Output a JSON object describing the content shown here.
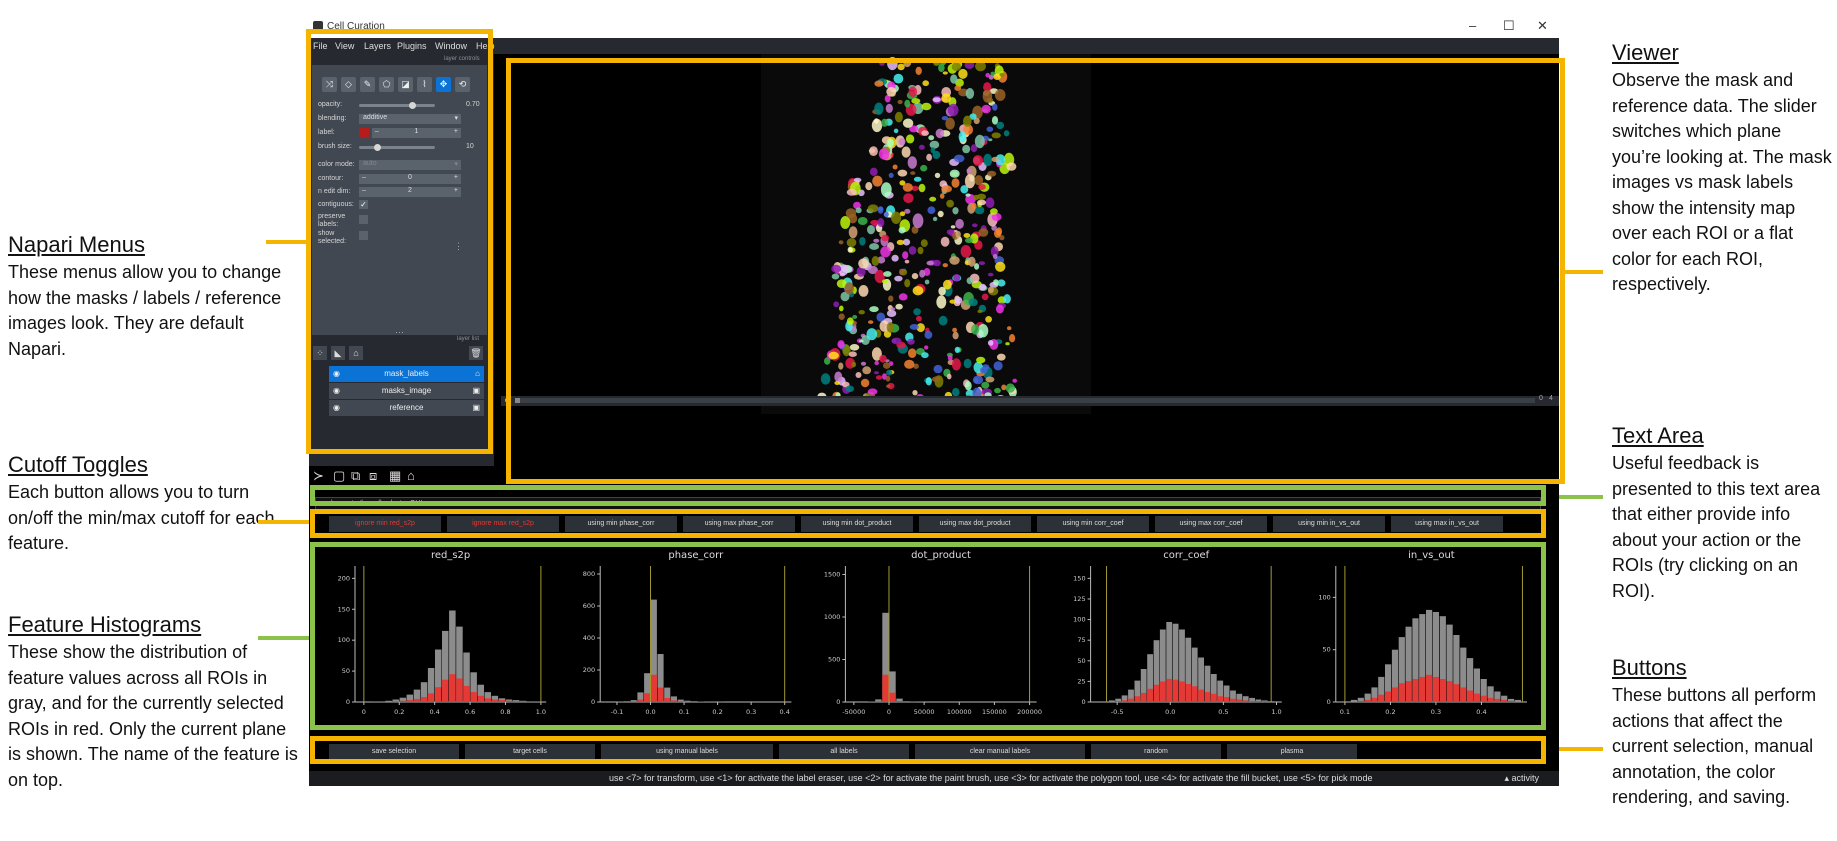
{
  "annotations": {
    "napari_menus": {
      "title": "Napari Menus",
      "description": "These menus allow you to change how the masks / labels / reference images look. They are default Napari."
    },
    "cutoff_toggles": {
      "title": "Cutoff Toggles",
      "description": "Each button allows you to turn on/off the min/max cutoff for each feature."
    },
    "feature_histograms": {
      "title": "Feature Histograms",
      "description": "These show the distribution of feature values across all ROIs in gray, and for the currently selected ROIs in red. Only the current plane is shown. The name of the feature is on top."
    },
    "viewer": {
      "title": "Viewer",
      "description": "Observe the mask and reference data. The slider switches which plane you’re looking at. The mask images vs mask labels show the intensity map over each ROI or a flat color for each ROI, respectively."
    },
    "text_area": {
      "title": "Text Area",
      "description": "Useful feedback is presented to this text area that either provide info about your action or the ROIs (try clicking on an ROI)."
    },
    "buttons": {
      "title": "Buttons",
      "description": "These buttons all perform actions that affect the current selection, manual annotation, the color rendering, and saving."
    }
  },
  "window": {
    "title": "Cell Curation",
    "controls": [
      "–",
      "☐",
      "✕"
    ]
  },
  "menubar": [
    "File",
    "View",
    "Layers",
    "Plugins",
    "Window",
    "Help"
  ],
  "layer_controls": {
    "header": "layer controls",
    "opacity_label": "opacity:",
    "opacity_value": "0.70",
    "opacity_fraction": 0.7,
    "blending_label": "blending:",
    "blending_value": "additive",
    "label_label": "label:",
    "label_value": "1",
    "label_color": "#b71c1c",
    "brush_size_label": "brush size:",
    "brush_size_value": "10",
    "color_mode_label": "color mode:",
    "color_mode_value": "auto",
    "contour_label": "contour:",
    "contour_value": "0",
    "n_edit_dim_label": "n edit dim:",
    "n_edit_dim_value": "2",
    "contiguous_label": "contiguous:",
    "contiguous_checked": true,
    "preserve_labels_label": "preserve labels:",
    "show_selected_label": "show selected:",
    "tool_icons": [
      "shuffle-icon",
      "eraser-icon",
      "brush-icon",
      "polygon-icon",
      "fill-icon",
      "picker-icon",
      "move-icon",
      "transform-icon"
    ]
  },
  "layer_list": {
    "header": "layer list",
    "layers": [
      {
        "name": "mask_labels",
        "kind": "labels",
        "active": true
      },
      {
        "name": "masks_image",
        "kind": "image",
        "active": false
      },
      {
        "name": "reference",
        "kind": "image",
        "active": false
      }
    ]
  },
  "dims": {
    "left": "0",
    "right": "0",
    "total": "4"
  },
  "text_area": {
    "message": "welcome to the cell selector GUI"
  },
  "toggles": [
    {
      "label": "ignore min red_s2p",
      "state": "ignore"
    },
    {
      "label": "ignore max red_s2p",
      "state": "ignore"
    },
    {
      "label": "using min phase_corr",
      "state": "using"
    },
    {
      "label": "using max phase_corr",
      "state": "using"
    },
    {
      "label": "using min dot_product",
      "state": "using"
    },
    {
      "label": "using max dot_product",
      "state": "using"
    },
    {
      "label": "using min corr_coef",
      "state": "using"
    },
    {
      "label": "using max corr_coef",
      "state": "using"
    },
    {
      "label": "using min in_vs_out",
      "state": "using"
    },
    {
      "label": "using max in_vs_out",
      "state": "using"
    }
  ],
  "buttons": [
    "save selection",
    "target cells",
    "using manual labels",
    "all labels",
    "clear manual labels",
    "random",
    "plasma"
  ],
  "status_bar": {
    "message": "use <7> for transform, use <1> for activate the label eraser, use <2> for activate the paint brush, use <3> for activate the polygon tool, use <4> for activate the fill bucket, use <5> for pick mode",
    "activity": "activity"
  },
  "colors": {
    "highlight_yellow": "#f4b400",
    "highlight_green": "#8bc34a",
    "all_rois_gray": "#8c8c8c",
    "selected_rois_red": "#e53935",
    "cutoff_line": "#a49a33",
    "napari_bg": "#262930",
    "napari_active": "#0b73d6"
  },
  "chart_data": [
    {
      "type": "bar",
      "title": "red_s2p",
      "xlim": [
        -0.05,
        1.03
      ],
      "ylim": [
        0,
        220
      ],
      "xticks": [
        0,
        0.2,
        0.4,
        0.6,
        0.8,
        1.0
      ],
      "xticklabels": [
        "0",
        "0.2",
        "0.4",
        "0.6",
        "0.8",
        "1.0"
      ],
      "yticks": [
        0,
        50,
        100,
        150,
        200
      ],
      "cutoffs": [
        0.0,
        1.0
      ],
      "x": [
        0.02,
        0.06,
        0.1,
        0.14,
        0.18,
        0.22,
        0.26,
        0.3,
        0.34,
        0.38,
        0.42,
        0.46,
        0.5,
        0.54,
        0.58,
        0.62,
        0.66,
        0.7,
        0.74,
        0.78,
        0.82,
        0.86,
        0.9,
        0.94,
        0.98
      ],
      "series": [
        {
          "name": "all",
          "values": [
            0,
            1,
            1,
            2,
            4,
            7,
            12,
            20,
            32,
            55,
            85,
            115,
            148,
            122,
            80,
            48,
            28,
            16,
            10,
            6,
            4,
            3,
            2,
            1,
            1
          ]
        },
        {
          "name": "selected",
          "values": [
            0,
            0,
            0,
            0,
            1,
            2,
            3,
            5,
            8,
            14,
            24,
            36,
            45,
            38,
            26,
            16,
            10,
            6,
            4,
            3,
            2,
            1,
            1,
            0,
            0
          ]
        }
      ]
    },
    {
      "type": "bar",
      "title": "phase_corr",
      "xlim": [
        -0.15,
        0.42
      ],
      "ylim": [
        0,
        850
      ],
      "xticks": [
        -0.1,
        0,
        0.1,
        0.2,
        0.3,
        0.4
      ],
      "xticklabels": [
        "-0.1",
        "0.0",
        "0.1",
        "0.2",
        "0.3",
        "0.4"
      ],
      "yticks": [
        0,
        200,
        400,
        600,
        800
      ],
      "cutoffs": [
        0.0,
        0.4
      ],
      "x": [
        -0.09,
        -0.07,
        -0.05,
        -0.03,
        -0.01,
        0.01,
        0.03,
        0.05,
        0.07,
        0.09,
        0.11,
        0.13,
        0.15,
        0.17,
        0.19,
        0.21
      ],
      "series": [
        {
          "name": "all",
          "values": [
            2,
            5,
            12,
            60,
            180,
            640,
            300,
            90,
            35,
            15,
            8,
            5,
            3,
            2,
            1,
            1
          ]
        },
        {
          "name": "selected",
          "values": [
            0,
            1,
            3,
            15,
            55,
            170,
            90,
            25,
            10,
            4,
            2,
            1,
            1,
            0,
            0,
            0
          ]
        }
      ]
    },
    {
      "type": "bar",
      "title": "dot_product",
      "xlim": [
        -62000,
        210000
      ],
      "ylim": [
        0,
        1600
      ],
      "xticks": [
        -50000,
        0,
        50000,
        100000,
        150000,
        200000
      ],
      "xticklabels": [
        "-50000",
        "0",
        "50000",
        "100000",
        "150000",
        "200000"
      ],
      "yticks": [
        0,
        500,
        1000,
        1500
      ],
      "cutoffs": [
        0,
        200000
      ],
      "x": [
        -25000,
        -15000,
        -5000,
        5000,
        15000,
        25000,
        35000,
        45000
      ],
      "series": [
        {
          "name": "all",
          "values": [
            5,
            30,
            1050,
            360,
            40,
            10,
            4,
            2
          ]
        },
        {
          "name": "selected",
          "values": [
            1,
            8,
            320,
            110,
            12,
            3,
            1,
            0
          ]
        }
      ]
    },
    {
      "type": "bar",
      "title": "corr_coef",
      "xlim": [
        -0.75,
        1.05
      ],
      "ylim": [
        0,
        165
      ],
      "xticks": [
        -0.5,
        0,
        0.5,
        1.0
      ],
      "xticklabels": [
        "-0.5",
        "0.0",
        "0.5",
        "1.0"
      ],
      "yticks": [
        0,
        25,
        50,
        75,
        100,
        125,
        150
      ],
      "cutoffs": [
        -0.6,
        0.95
      ],
      "x": [
        -0.55,
        -0.49,
        -0.43,
        -0.37,
        -0.31,
        -0.25,
        -0.19,
        -0.13,
        -0.07,
        -0.01,
        0.05,
        0.11,
        0.17,
        0.23,
        0.29,
        0.35,
        0.41,
        0.47,
        0.53,
        0.59,
        0.65,
        0.71,
        0.77,
        0.83,
        0.89,
        0.95
      ],
      "series": [
        {
          "name": "all",
          "values": [
            2,
            4,
            8,
            15,
            26,
            40,
            58,
            75,
            88,
            97,
            95,
            88,
            78,
            66,
            54,
            44,
            34,
            26,
            20,
            14,
            10,
            7,
            5,
            3,
            2,
            1
          ]
        },
        {
          "name": "selected",
          "values": [
            0,
            1,
            2,
            4,
            7,
            11,
            16,
            21,
            25,
            28,
            27,
            25,
            22,
            19,
            15,
            12,
            10,
            7,
            6,
            4,
            3,
            2,
            1,
            1,
            1,
            0
          ]
        }
      ]
    },
    {
      "type": "bar",
      "title": "in_vs_out",
      "xlim": [
        0.08,
        0.5
      ],
      "ylim": [
        0,
        130
      ],
      "xticks": [
        0.1,
        0.2,
        0.3,
        0.4
      ],
      "xticklabels": [
        "0.1",
        "0.2",
        "0.3",
        "0.4"
      ],
      "yticks": [
        0,
        50,
        100
      ],
      "cutoffs": [
        0.1,
        0.49
      ],
      "x": [
        0.12,
        0.135,
        0.15,
        0.165,
        0.18,
        0.195,
        0.21,
        0.225,
        0.24,
        0.255,
        0.27,
        0.285,
        0.3,
        0.315,
        0.33,
        0.345,
        0.36,
        0.375,
        0.39,
        0.405,
        0.42,
        0.435,
        0.45,
        0.465,
        0.48
      ],
      "series": [
        {
          "name": "all",
          "values": [
            2,
            4,
            8,
            14,
            24,
            36,
            50,
            62,
            72,
            80,
            84,
            88,
            86,
            82,
            74,
            64,
            52,
            42,
            32,
            22,
            15,
            10,
            6,
            3,
            2
          ]
        },
        {
          "name": "selected",
          "values": [
            0,
            1,
            2,
            4,
            7,
            10,
            14,
            18,
            20,
            22,
            24,
            26,
            24,
            22,
            20,
            17,
            14,
            11,
            8,
            6,
            4,
            3,
            2,
            1,
            0
          ]
        }
      ]
    }
  ]
}
